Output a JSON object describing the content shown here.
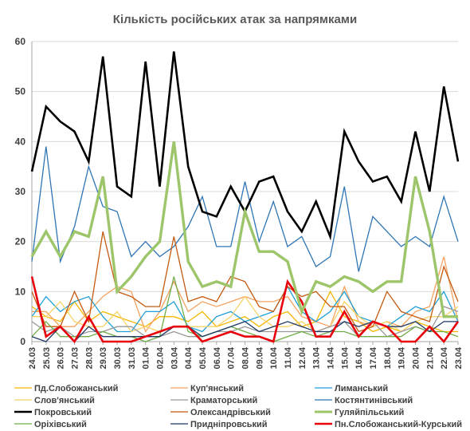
{
  "chart_data": {
    "type": "line",
    "title": "Кількість російських атак за напрямками",
    "xlabel": "",
    "ylabel": "",
    "ylim": [
      0,
      60
    ],
    "yticks": [
      0,
      10,
      20,
      30,
      40,
      50,
      60
    ],
    "grid": true,
    "legend_position": "bottom",
    "x": [
      "24.03",
      "25.03",
      "26.03",
      "27.03",
      "28.03",
      "29.03",
      "30.03",
      "31.03",
      "01.04",
      "02.04",
      "03.04",
      "04.04",
      "05.04",
      "06.04",
      "07.04",
      "08.04",
      "09.04",
      "10.04",
      "11.04",
      "12.04",
      "13.04",
      "14.04",
      "15.04",
      "16.04",
      "17.04",
      "18.04",
      "19.04",
      "20.04",
      "21.04",
      "22.04",
      "23.04"
    ],
    "x_labels": [
      "24.03",
      "25.03",
      "26.03",
      "27.03",
      "28.03",
      "29.03",
      "30.03",
      "31.03",
      "01.04",
      "02.04",
      "03.04",
      "04.04",
      "05.04",
      "06.04",
      "07.04",
      "08.04",
      "09.04",
      "10.04",
      "11.04",
      "12.04",
      "13.04",
      "14.04",
      "15.04",
      "16.04",
      "17.04",
      "18.04",
      "19.04",
      "20.04",
      "21.04",
      "22.04",
      "23.04"
    ],
    "series": [
      {
        "name": "Пд.Слобожанський",
        "color": "#f5b800",
        "width": 1.3,
        "values": [
          7,
          5,
          4,
          8,
          4,
          6,
          5,
          4,
          3,
          5,
          5,
          4,
          6,
          3,
          4,
          5,
          3,
          5,
          6,
          3,
          4,
          10,
          5,
          4,
          2,
          3,
          2,
          4,
          3,
          2,
          2
        ]
      },
      {
        "name": "Куп'янський",
        "color": "#f4a261",
        "width": 1.3,
        "values": [
          6,
          6,
          3,
          3,
          6,
          9,
          11,
          10,
          2,
          6,
          12,
          6,
          8,
          7,
          8,
          9,
          8,
          8,
          9,
          5,
          4,
          3,
          11,
          4,
          3,
          4,
          3,
          6,
          7,
          17,
          4
        ]
      },
      {
        "name": "Лиманський",
        "color": "#1fa0d8",
        "width": 1.3,
        "values": [
          5,
          9,
          6,
          8,
          9,
          5,
          2,
          2,
          6,
          6,
          8,
          3,
          2,
          5,
          6,
          4,
          5,
          6,
          11,
          6,
          4,
          6,
          10,
          5,
          4,
          3,
          5,
          7,
          6,
          10,
          4
        ]
      },
      {
        "name": "Слов'янський",
        "color": "#f7d46a",
        "width": 1.3,
        "values": [
          5,
          5,
          8,
          4,
          3,
          3,
          6,
          2,
          3,
          2,
          3,
          3,
          3,
          3,
          5,
          9,
          5,
          3,
          3,
          4,
          2,
          3,
          8,
          5,
          3,
          4,
          2,
          4,
          5,
          5,
          7
        ]
      },
      {
        "name": "Краматорський",
        "color": "#999999",
        "width": 1.3,
        "values": [
          4,
          2,
          3,
          1,
          2,
          2,
          3,
          3,
          1,
          1,
          2,
          1,
          1,
          2,
          2,
          3,
          2,
          2,
          2,
          2,
          2,
          3,
          4,
          1,
          4,
          1,
          2,
          3,
          2,
          7,
          6
        ]
      },
      {
        "name": "Костянтинівський",
        "color": "#2e75b6",
        "width": 1.3,
        "values": [
          16,
          39,
          16,
          23,
          35,
          27,
          26,
          17,
          20,
          17,
          19,
          23,
          29,
          19,
          19,
          32,
          20,
          28,
          19,
          21,
          15,
          17,
          31,
          14,
          25,
          22,
          19,
          21,
          19,
          29,
          20
        ]
      },
      {
        "name": "Покровський",
        "color": "#000000",
        "width": 2.6,
        "values": [
          34,
          47,
          44,
          42,
          36,
          57,
          31,
          29,
          56,
          31,
          58,
          35,
          26,
          25,
          31,
          26,
          32,
          33,
          26,
          22,
          28,
          21,
          42,
          36,
          32,
          33,
          28,
          42,
          30,
          51,
          36
        ]
      },
      {
        "name": "Олександрівський",
        "color": "#c55a11",
        "width": 1.3,
        "values": [
          10,
          3,
          3,
          10,
          4,
          22,
          10,
          9,
          7,
          7,
          21,
          8,
          9,
          8,
          13,
          12,
          7,
          6,
          11,
          9,
          10,
          7,
          7,
          2,
          3,
          10,
          6,
          5,
          4,
          15,
          8
        ]
      },
      {
        "name": "Гуляйпільський",
        "color": "#9dc66b",
        "width": 3.4,
        "values": [
          17,
          22,
          17,
          22,
          21,
          33,
          10,
          13,
          17,
          20,
          40,
          16,
          11,
          12,
          11,
          26,
          18,
          18,
          16,
          6,
          12,
          11,
          13,
          12,
          10,
          12,
          12,
          33,
          22,
          5,
          5
        ]
      },
      {
        "name": "Оріхівський",
        "color": "#70ad47",
        "width": 1.3,
        "values": [
          1,
          4,
          1,
          1,
          1,
          2,
          1,
          1,
          0,
          1,
          13,
          2,
          1,
          2,
          3,
          2,
          1,
          0,
          1,
          2,
          1,
          2,
          2,
          1,
          1,
          1,
          1,
          3,
          2,
          2,
          1
        ]
      },
      {
        "name": "Придніпровський",
        "color": "#1f3864",
        "width": 1.3,
        "values": [
          1,
          0,
          3,
          0,
          3,
          1,
          1,
          1,
          1,
          1,
          3,
          3,
          1,
          2,
          3,
          4,
          2,
          3,
          4,
          3,
          2,
          2,
          4,
          3,
          4,
          3,
          3,
          4,
          2,
          4,
          4
        ]
      },
      {
        "name": "Пн.Слобожанський-Курський",
        "color": "#e8000b",
        "width": 2.6,
        "values": [
          13,
          1,
          3,
          0,
          5,
          0,
          0,
          0,
          1,
          2,
          3,
          3,
          0,
          1,
          2,
          1,
          1,
          0,
          12,
          8,
          1,
          1,
          6,
          1,
          4,
          3,
          0,
          0,
          3,
          0,
          4
        ]
      }
    ]
  }
}
